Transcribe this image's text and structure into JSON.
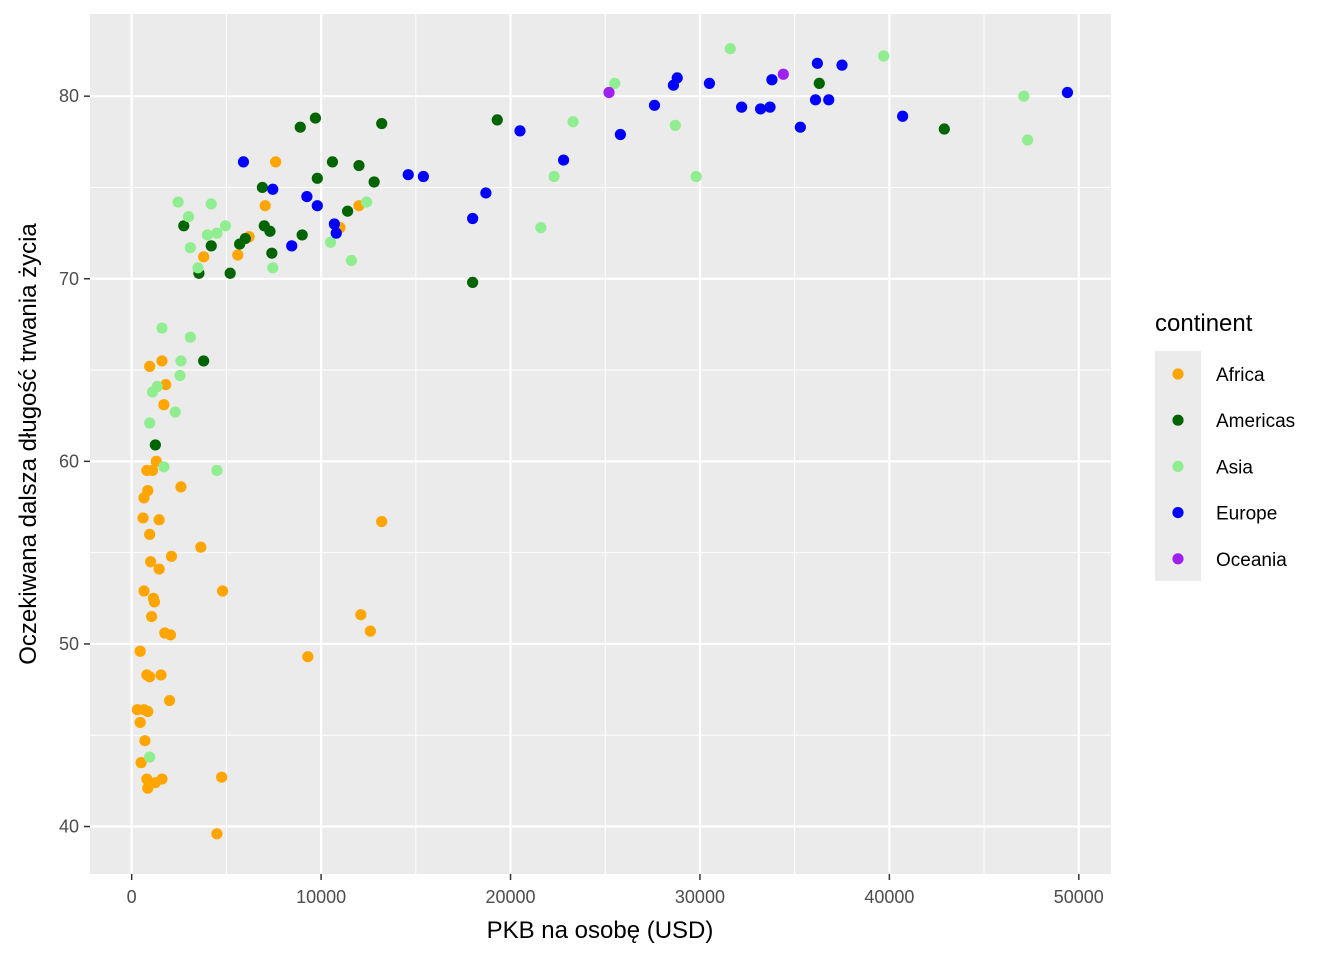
{
  "chart_data": {
    "type": "scatter",
    "title": "",
    "xlabel": "PKB na osobę (USD)",
    "ylabel": "Oczekiwana dalsza długość trwania życia",
    "xlim": [
      -2200,
      51700
    ],
    "ylim": [
      37.4,
      84.5
    ],
    "x_ticks": [
      0,
      10000,
      20000,
      30000,
      40000,
      50000
    ],
    "x_tick_labels": [
      "0",
      "10000",
      "20000",
      "30000",
      "40000",
      "50000"
    ],
    "y_ticks": [
      40,
      50,
      60,
      70,
      80
    ],
    "y_tick_labels": [
      "40",
      "50",
      "60",
      "70",
      "80"
    ],
    "grid": true,
    "legend": {
      "title": "continent",
      "placement": "right",
      "items": [
        {
          "name": "Africa",
          "color": "#FFA500"
        },
        {
          "name": "Americas",
          "color": "#006400"
        },
        {
          "name": "Asia",
          "color": "#90EE90"
        },
        {
          "name": "Europe",
          "color": "#0000FF"
        },
        {
          "name": "Oceania",
          "color": "#A020F0"
        }
      ]
    },
    "series": [
      {
        "name": "Africa",
        "color": "#FFA500",
        "points": [
          [
            7600,
            76.4
          ],
          [
            7050,
            74.0
          ],
          [
            3800,
            71.2
          ],
          [
            5600,
            71.3
          ],
          [
            6200,
            72.3
          ],
          [
            12000,
            74.0
          ],
          [
            11000,
            72.8
          ],
          [
            950,
            65.2
          ],
          [
            1600,
            65.5
          ],
          [
            1800,
            64.2
          ],
          [
            1700,
            63.1
          ],
          [
            1300,
            60.0
          ],
          [
            800,
            59.5
          ],
          [
            1100,
            59.5
          ],
          [
            2600,
            58.6
          ],
          [
            850,
            58.4
          ],
          [
            650,
            58.0
          ],
          [
            600,
            56.9
          ],
          [
            1450,
            56.8
          ],
          [
            13200,
            56.7
          ],
          [
            950,
            56.0
          ],
          [
            3650,
            55.3
          ],
          [
            2100,
            54.8
          ],
          [
            1000,
            54.5
          ],
          [
            1450,
            54.1
          ],
          [
            4800,
            52.9
          ],
          [
            650,
            52.9
          ],
          [
            1150,
            52.5
          ],
          [
            1200,
            52.3
          ],
          [
            12100,
            51.6
          ],
          [
            1050,
            51.5
          ],
          [
            12600,
            50.7
          ],
          [
            1750,
            50.6
          ],
          [
            2050,
            50.5
          ],
          [
            450,
            49.6
          ],
          [
            9300,
            49.3
          ],
          [
            800,
            48.3
          ],
          [
            1550,
            48.3
          ],
          [
            950,
            48.2
          ],
          [
            2000,
            46.9
          ],
          [
            300,
            46.4
          ],
          [
            650,
            46.4
          ],
          [
            850,
            46.3
          ],
          [
            450,
            45.7
          ],
          [
            700,
            44.7
          ],
          [
            500,
            43.5
          ],
          [
            4750,
            42.7
          ],
          [
            800,
            42.6
          ],
          [
            1600,
            42.6
          ],
          [
            1250,
            42.4
          ],
          [
            850,
            42.1
          ],
          [
            4500,
            39.6
          ]
        ]
      },
      {
        "name": "Americas",
        "color": "#006400",
        "points": [
          [
            9700,
            78.8
          ],
          [
            8900,
            78.3
          ],
          [
            13200,
            78.5
          ],
          [
            19300,
            78.7
          ],
          [
            42900,
            78.2
          ],
          [
            36300,
            80.7
          ],
          [
            10600,
            76.4
          ],
          [
            12000,
            76.2
          ],
          [
            9800,
            75.5
          ],
          [
            12800,
            75.3
          ],
          [
            6900,
            75.0
          ],
          [
            11400,
            73.7
          ],
          [
            2750,
            72.9
          ],
          [
            7000,
            72.9
          ],
          [
            7300,
            72.6
          ],
          [
            9000,
            72.4
          ],
          [
            6000,
            72.2
          ],
          [
            5700,
            71.9
          ],
          [
            4200,
            71.8
          ],
          [
            7400,
            71.4
          ],
          [
            3550,
            70.3
          ],
          [
            5200,
            70.3
          ],
          [
            18000,
            69.8
          ],
          [
            3800,
            65.5
          ],
          [
            1250,
            60.9
          ]
        ]
      },
      {
        "name": "Asia",
        "color": "#90EE90",
        "points": [
          [
            31600,
            82.6
          ],
          [
            39700,
            82.2
          ],
          [
            25500,
            80.7
          ],
          [
            47100,
            80.0
          ],
          [
            28700,
            78.4
          ],
          [
            23300,
            78.6
          ],
          [
            47300,
            77.6
          ],
          [
            29800,
            75.6
          ],
          [
            22300,
            75.6
          ],
          [
            2450,
            74.2
          ],
          [
            4200,
            74.1
          ],
          [
            12400,
            74.2
          ],
          [
            3000,
            73.4
          ],
          [
            4950,
            72.9
          ],
          [
            21600,
            72.8
          ],
          [
            4500,
            72.5
          ],
          [
            4000,
            72.4
          ],
          [
            10500,
            72.0
          ],
          [
            3100,
            71.7
          ],
          [
            11600,
            71.0
          ],
          [
            3500,
            70.6
          ],
          [
            7450,
            70.6
          ],
          [
            1600,
            67.3
          ],
          [
            3100,
            66.8
          ],
          [
            2600,
            65.5
          ],
          [
            2550,
            64.7
          ],
          [
            1350,
            64.1
          ],
          [
            1100,
            63.8
          ],
          [
            2300,
            62.7
          ],
          [
            950,
            62.1
          ],
          [
            1700,
            59.7
          ],
          [
            4500,
            59.5
          ],
          [
            950,
            43.8
          ]
        ]
      },
      {
        "name": "Europe",
        "color": "#0000FF",
        "points": [
          [
            36200,
            81.8
          ],
          [
            37500,
            81.7
          ],
          [
            28800,
            81.0
          ],
          [
            33800,
            80.9
          ],
          [
            30500,
            80.7
          ],
          [
            28600,
            80.6
          ],
          [
            49400,
            80.2
          ],
          [
            36100,
            79.8
          ],
          [
            36800,
            79.8
          ],
          [
            27600,
            79.5
          ],
          [
            32200,
            79.4
          ],
          [
            33700,
            79.4
          ],
          [
            33200,
            79.3
          ],
          [
            40700,
            78.9
          ],
          [
            35300,
            78.3
          ],
          [
            20500,
            78.1
          ],
          [
            25800,
            77.9
          ],
          [
            5900,
            76.4
          ],
          [
            22800,
            76.5
          ],
          [
            14600,
            75.7
          ],
          [
            15400,
            75.6
          ],
          [
            7450,
            74.9
          ],
          [
            18700,
            74.7
          ],
          [
            9250,
            74.5
          ],
          [
            9800,
            74.0
          ],
          [
            18000,
            73.3
          ],
          [
            10700,
            73.0
          ],
          [
            10800,
            72.5
          ],
          [
            8450,
            71.8
          ]
        ]
      },
      {
        "name": "Oceania",
        "color": "#A020F0",
        "points": [
          [
            34400,
            81.2
          ],
          [
            25200,
            80.2
          ]
        ]
      }
    ]
  }
}
